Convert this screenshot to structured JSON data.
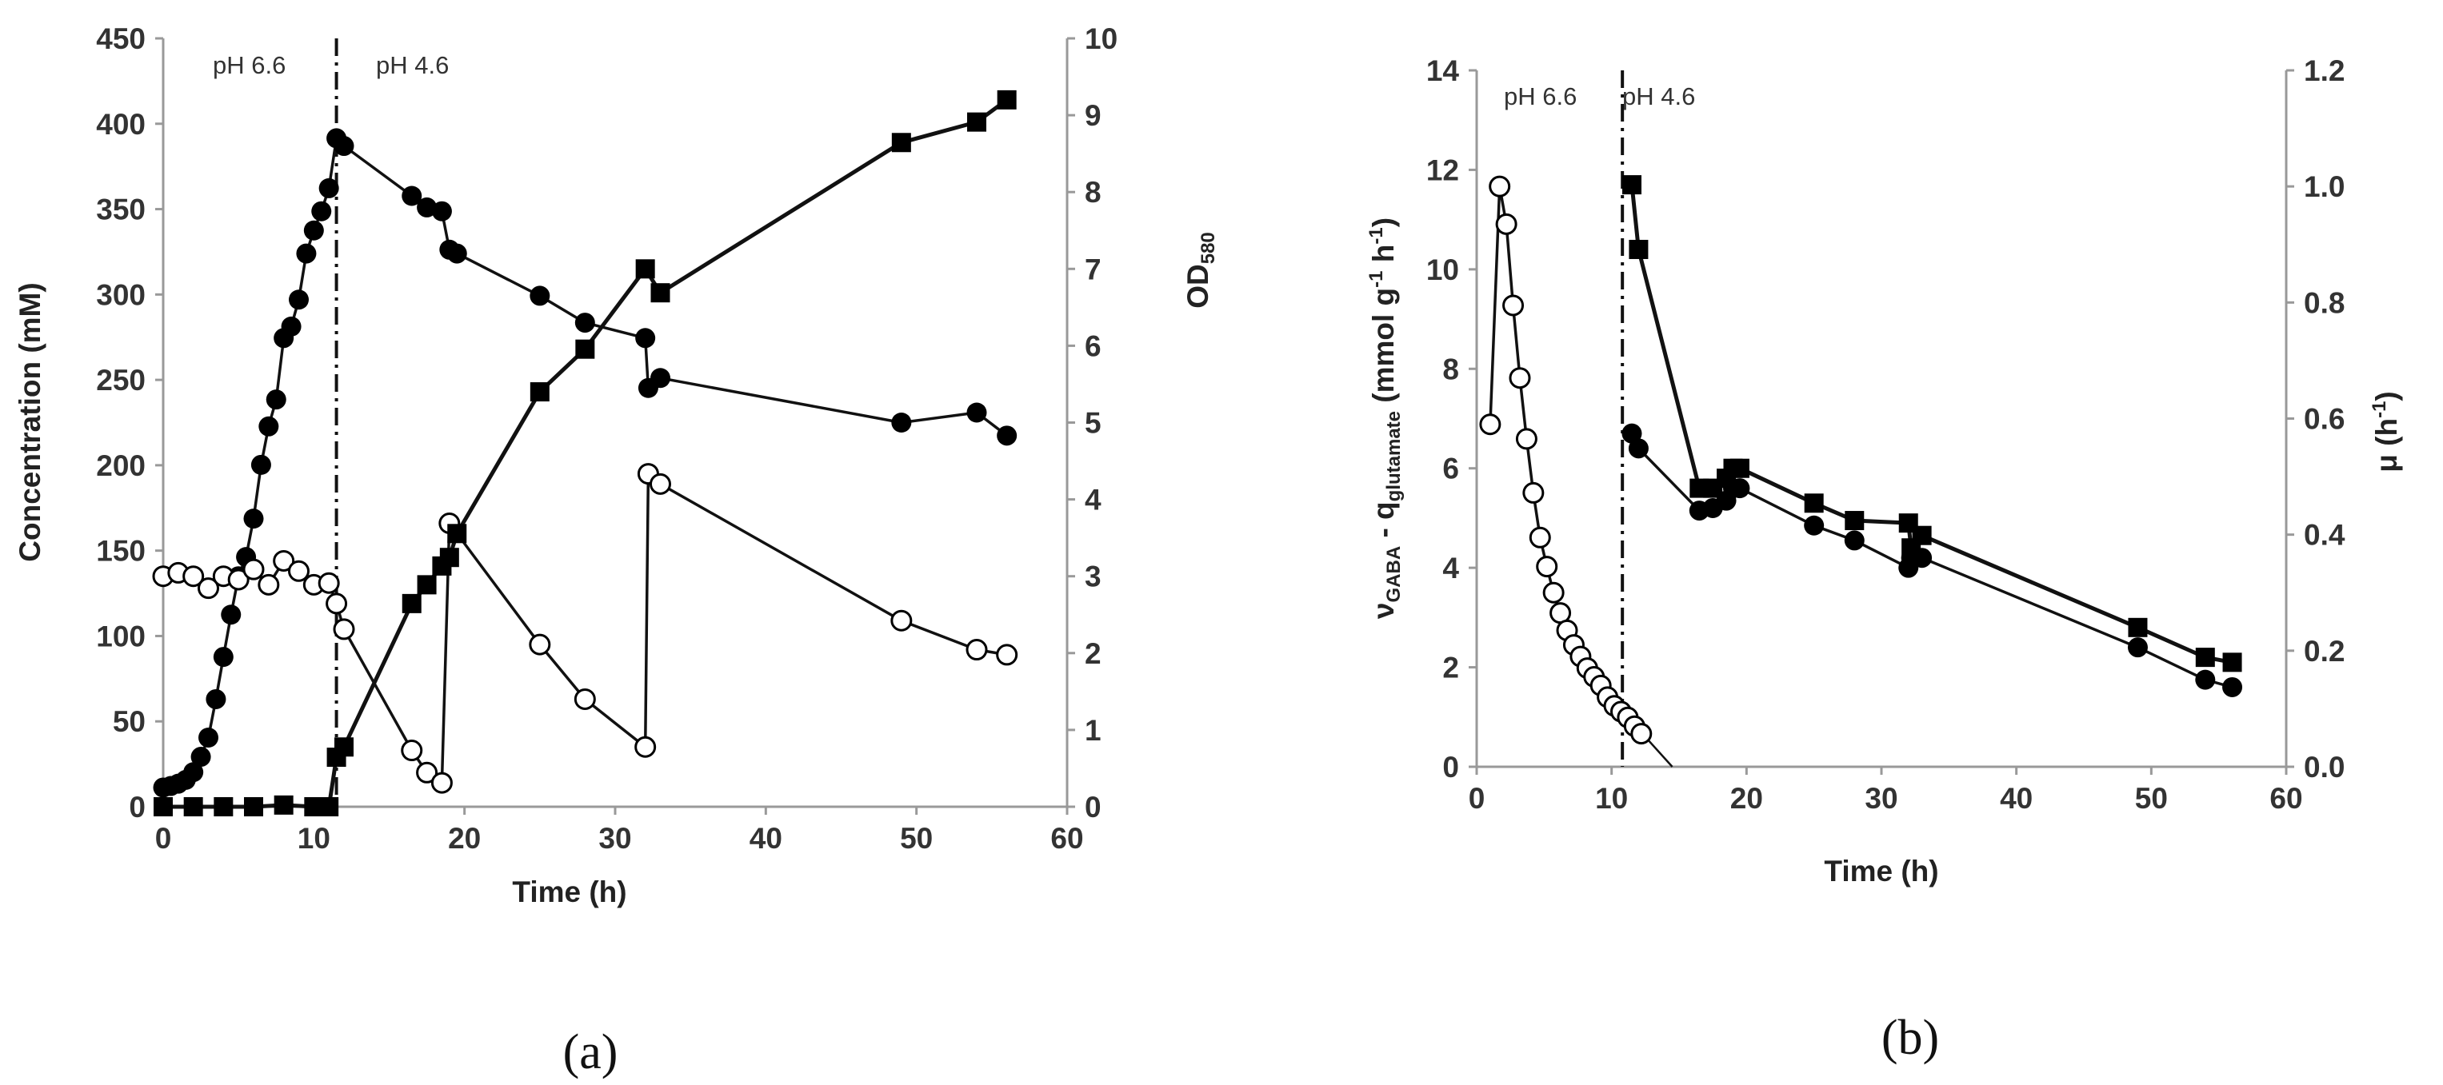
{
  "figure": {
    "panel_a_label": "(a)",
    "panel_b_label": "(b)"
  },
  "chart_data": [
    {
      "type": "line",
      "panel": "a",
      "xlabel": "Time (h)",
      "ylabel_left": "Concentration (mM)",
      "ylabel_right_main": "OD",
      "ylabel_right_sub": "580",
      "xlim": [
        0,
        60
      ],
      "xticks": [
        0,
        10,
        20,
        30,
        40,
        50,
        60
      ],
      "ylim_left": [
        0,
        450
      ],
      "yticks_left": [
        0,
        50,
        100,
        150,
        200,
        250,
        300,
        350,
        400,
        450
      ],
      "ylim_right": [
        0,
        10
      ],
      "yticks_right": [
        0,
        1,
        2,
        3,
        4,
        5,
        6,
        7,
        8,
        9,
        10
      ],
      "annotations": [
        "pH 6.6",
        "pH 4.6"
      ],
      "divider_x": 11.5,
      "series": [
        {
          "name": "OD580 (filled circles)",
          "marker": "filled-circle",
          "axis": "right",
          "x": [
            0,
            0.5,
            1,
            1.5,
            2,
            2.5,
            3,
            3.5,
            4,
            4.5,
            5,
            5.5,
            6,
            6.5,
            7,
            7.5,
            8,
            8.5,
            9,
            9.5,
            10,
            10.5,
            11,
            11.5,
            12,
            16.5,
            17.5,
            18.5,
            19,
            19.5,
            25,
            28,
            32,
            32.2,
            33,
            49,
            54,
            56
          ],
          "y": [
            0.25,
            0.27,
            0.3,
            0.35,
            0.45,
            0.65,
            0.9,
            1.4,
            1.95,
            2.5,
            3.0,
            3.25,
            3.75,
            4.45,
            4.95,
            5.3,
            6.1,
            6.25,
            6.6,
            7.2,
            7.5,
            7.75,
            8.05,
            8.7,
            8.6,
            7.95,
            7.8,
            7.75,
            7.25,
            7.2,
            6.65,
            6.3,
            6.1,
            5.45,
            5.58,
            5.0,
            5.13,
            4.83
          ]
        },
        {
          "name": "Concentration (open circles)",
          "marker": "open-circle",
          "axis": "left",
          "x": [
            0,
            1,
            2,
            3,
            4,
            5,
            6,
            7,
            8,
            9,
            10,
            11,
            11.5,
            12,
            16.5,
            17.5,
            18.5,
            19,
            25,
            28,
            32,
            32.2,
            33,
            49,
            54,
            56
          ],
          "y": [
            135,
            137,
            135,
            128,
            135,
            133,
            139,
            130,
            144,
            138,
            130,
            131,
            119,
            104,
            33,
            20,
            14,
            166,
            95,
            63,
            35,
            195,
            189,
            109,
            92,
            89
          ]
        },
        {
          "name": "Concentration (filled squares)",
          "marker": "filled-square",
          "axis": "left",
          "x": [
            0,
            2,
            4,
            6,
            8,
            10,
            11,
            11.5,
            12,
            16.5,
            17.5,
            18.5,
            19,
            19.5,
            25,
            28,
            32,
            33,
            49,
            54,
            56
          ],
          "y": [
            0,
            0,
            0,
            0,
            1,
            0,
            0,
            29,
            35,
            119,
            130,
            141,
            146,
            160,
            243,
            268,
            315,
            301,
            389,
            401,
            414
          ]
        }
      ]
    },
    {
      "type": "line",
      "panel": "b",
      "xlabel": "Time (h)",
      "ylabel_left_parts": [
        "ν",
        "GABA",
        " - q",
        "glutamate",
        " (mmol g",
        "-1",
        " h",
        "-1",
        ")"
      ],
      "ylabel_right_parts": [
        "μ (h",
        "-1",
        ")"
      ],
      "xlim": [
        0,
        60
      ],
      "xticks": [
        0,
        10,
        20,
        30,
        40,
        50,
        60
      ],
      "ylim_left": [
        0,
        14
      ],
      "yticks_left": [
        0,
        2,
        4,
        6,
        8,
        10,
        12,
        14
      ],
      "ylim_right": [
        0,
        1.2
      ],
      "yticks_right": [
        "0.0",
        "0.2",
        "0.4",
        "0.6",
        "0.8",
        "1.0",
        "1.2"
      ],
      "annotations": [
        "pH 6.6",
        "pH 4.6"
      ],
      "divider_x": 10.8,
      "series": [
        {
          "name": "μ (open circles)",
          "marker": "open-circle",
          "axis": "right",
          "x": [
            1.0,
            1.7,
            2.2,
            2.7,
            3.2,
            3.7,
            4.2,
            4.7,
            5.2,
            5.7,
            6.2,
            6.7,
            7.2,
            7.7,
            8.2,
            8.7,
            9.2,
            9.7,
            10.2,
            10.7,
            11.2,
            11.7,
            12.2
          ],
          "y": [
            0.59,
            1.0,
            0.935,
            0.795,
            0.67,
            0.565,
            0.472,
            0.395,
            0.345,
            0.3,
            0.265,
            0.235,
            0.21,
            0.19,
            0.17,
            0.155,
            0.14,
            0.12,
            0.105,
            0.095,
            0.085,
            0.07,
            0.057
          ],
          "trend_line": {
            "x": [
              11.2,
              14.5
            ],
            "y": [
              0.085,
              0.0
            ]
          }
        },
        {
          "name": "νGABA (filled squares)",
          "marker": "filled-square",
          "axis": "left",
          "x": [
            11.5,
            12,
            16.5,
            17.5,
            18.5,
            19,
            19.5,
            25,
            28,
            32,
            32.2,
            33,
            49,
            54,
            56
          ],
          "y": [
            11.7,
            10.4,
            5.6,
            5.6,
            5.8,
            6.0,
            6.0,
            5.3,
            4.95,
            4.9,
            4.4,
            4.65,
            2.8,
            2.2,
            2.1
          ]
        },
        {
          "name": "qglutamate (filled circles)",
          "marker": "filled-circle",
          "axis": "left",
          "x": [
            11.5,
            12,
            16.5,
            17.5,
            18.5,
            19,
            19.5,
            25,
            28,
            32,
            32.2,
            33,
            49,
            54,
            56
          ],
          "y": [
            6.7,
            6.4,
            5.15,
            5.2,
            5.35,
            5.6,
            5.6,
            4.85,
            4.55,
            4.0,
            4.2,
            4.2,
            2.4,
            1.75,
            1.6
          ]
        }
      ]
    }
  ]
}
